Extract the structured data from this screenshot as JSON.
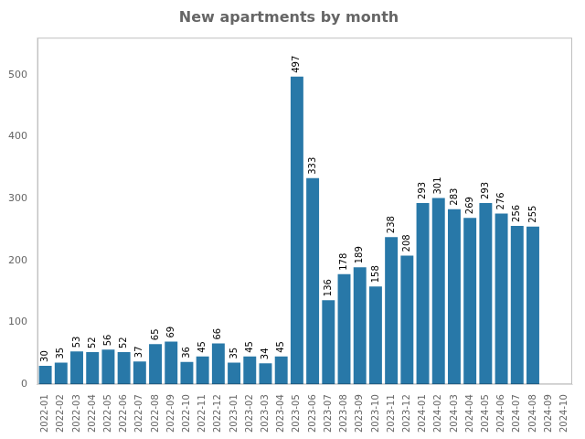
{
  "chart_data": {
    "type": "bar",
    "title": "New apartments by month",
    "categories": [
      "2022-01",
      "2022-02",
      "2022-03",
      "2022-04",
      "2022-05",
      "2022-06",
      "2022-07",
      "2022-08",
      "2022-09",
      "2022-10",
      "2022-11",
      "2022-12",
      "2023-01",
      "2023-02",
      "2023-03",
      "2023-04",
      "2023-05",
      "2023-06",
      "2023-07",
      "2023-08",
      "2023-09",
      "2023-10",
      "2023-11",
      "2023-12",
      "2024-01",
      "2024-02",
      "2024-03",
      "2024-04",
      "2024-05",
      "2024-06",
      "2024-07",
      "2024-08",
      "2024-09",
      "2024-10"
    ],
    "values": [
      30,
      35,
      53,
      52,
      56,
      52,
      37,
      65,
      69,
      36,
      45,
      66,
      35,
      45,
      34,
      45,
      497,
      333,
      136,
      178,
      189,
      158,
      238,
      208,
      293,
      301,
      283,
      269,
      293,
      276,
      256,
      255,
      0,
      0
    ],
    "value_labels": [
      "30",
      "35",
      "53",
      "52",
      "56",
      "52",
      "37",
      "65",
      "69",
      "36",
      "45",
      "66",
      "35",
      "45",
      "34",
      "45",
      "497",
      "333",
      "136",
      "178",
      "189",
      "158",
      "238",
      "208",
      "293",
      "301",
      "283",
      "269",
      "293",
      "276",
      "256",
      "255",
      null,
      null
    ],
    "data_labels": true,
    "color": "#2878a8",
    "ylim": [
      0,
      560
    ],
    "yticks": [
      0,
      100,
      200,
      300,
      400,
      500
    ],
    "grid": false
  }
}
